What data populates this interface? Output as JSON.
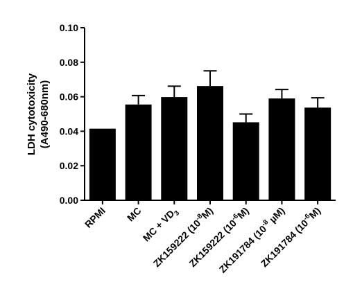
{
  "chart_data": {
    "type": "bar",
    "ylabel": [
      "LDH cytotoxicity",
      "(A490-680nm)"
    ],
    "xlabel": "",
    "ylim": [
      0,
      0.1
    ],
    "yticks": [
      "0.00",
      "0.02",
      "0.04",
      "0.06",
      "0.08",
      "0.10"
    ],
    "categories": [
      {
        "base": "RPMI",
        "sup": "",
        "tail": ""
      },
      {
        "base": "MC",
        "sup": "",
        "tail": ""
      },
      {
        "base": "MC + VD",
        "sub": "3",
        "sup": "",
        "tail": ""
      },
      {
        "base": "ZK159222 (10",
        "sup": "-8",
        "tail": "M)"
      },
      {
        "base": "ZK159222 (10",
        "sup": "-6",
        "tail": "M)"
      },
      {
        "base": "ZK191784 (10",
        "sup": "-8",
        "tail": " µM)"
      },
      {
        "base": "ZK191784 (10",
        "sup": "-6",
        "tail": "M)"
      }
    ],
    "values": [
      0.0415,
      0.0555,
      0.0598,
      0.0662,
      0.0452,
      0.059,
      0.0537
    ],
    "errors": [
      0.0,
      0.0052,
      0.0063,
      0.0088,
      0.0048,
      0.0052,
      0.0057
    ],
    "bar_color": "#000000",
    "grid": false,
    "legend": "none"
  }
}
